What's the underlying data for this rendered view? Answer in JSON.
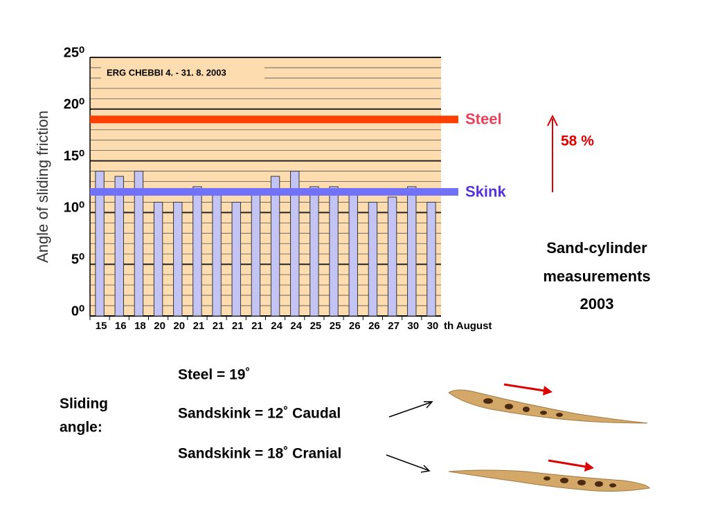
{
  "chart_data": {
    "type": "bar",
    "inset_title": "ERG CHEBBI  4. - 31. 8. 2003",
    "y_label": "Angle of sliding friction",
    "x_suffix": "th August",
    "categories": [
      "15",
      "16",
      "18",
      "20",
      "20",
      "21",
      "21",
      "21",
      "21",
      "24",
      "24",
      "25",
      "25",
      "26",
      "26",
      "27",
      "30",
      "30"
    ],
    "values": [
      14,
      13.5,
      14,
      11,
      11,
      12.5,
      12,
      11,
      12,
      13.5,
      14,
      12.5,
      12.5,
      12,
      11,
      11.5,
      12.5,
      11
    ],
    "color": "#c4c4f4",
    "ylim": [
      0,
      25
    ],
    "yticks": [
      {
        "value": 0,
        "label": "0⁰"
      },
      {
        "value": 5,
        "label": "5⁰"
      },
      {
        "value": 10,
        "label": "10⁰"
      },
      {
        "value": 15,
        "label": "15⁰"
      },
      {
        "value": 20,
        "label": "20⁰"
      },
      {
        "value": 25,
        "label": "25⁰"
      }
    ],
    "grid": true,
    "reference_lines": [
      {
        "name": "Steel",
        "value": 19,
        "color": "#ff4000",
        "label_color": "#e8405a"
      },
      {
        "name": "Skink",
        "value": 12,
        "color": "#7272f8",
        "label_color": "#5533dd"
      }
    ],
    "annotation": "58 %"
  },
  "slide": {
    "summary": [
      "Sand-cylinder",
      "measurements",
      "2003"
    ],
    "sliding_label": [
      "Sliding",
      "angle:"
    ],
    "lines": [
      "Steel = 19˚",
      "Sandskink = 12˚   Caudal",
      "Sandskink = 18˚   Cranial"
    ]
  }
}
